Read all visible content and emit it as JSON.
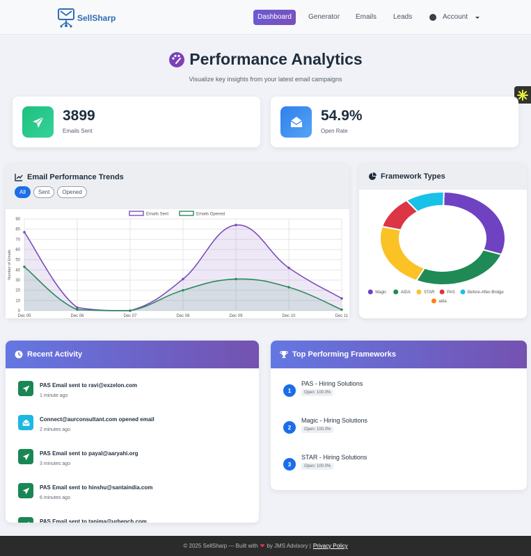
{
  "brand": {
    "name": "SellSharp"
  },
  "nav": {
    "items": [
      "Dashboard",
      "Generator",
      "Emails",
      "Leads"
    ],
    "account": "Account"
  },
  "header": {
    "title": "Performance Analytics",
    "subtitle": "Visualize key insights from your latest email campaigns"
  },
  "stats": [
    {
      "value": "3899",
      "label": "Emails Sent",
      "icon": "paper-plane-icon"
    },
    {
      "value": "54.9%",
      "label": "Open Rate",
      "icon": "envelope-open-icon"
    }
  ],
  "trends": {
    "title": "Email Performance Trends",
    "filters": [
      "All",
      "Sent",
      "Opened"
    ],
    "active_filter": "All"
  },
  "chart_data": [
    {
      "type": "area",
      "categories": [
        "Dec 05",
        "Dec 06",
        "Dec 07",
        "Dec 08",
        "Dec 09",
        "Dec 10",
        "Dec 11"
      ],
      "series": [
        {
          "name": "Emails Sent",
          "values": [
            77,
            3,
            0,
            31,
            84,
            42,
            12
          ],
          "color": "#7c4dba"
        },
        {
          "name": "Emails Opened",
          "values": [
            43,
            1,
            0,
            20,
            31,
            23,
            1
          ],
          "color": "#2a8a5e"
        }
      ],
      "ylabel": "Number of Emails",
      "ylim": [
        0,
        90
      ],
      "yticks": [
        0,
        10,
        20,
        30,
        40,
        50,
        60,
        70,
        80,
        90
      ],
      "grid": true,
      "legend": "top"
    },
    {
      "type": "pie",
      "title": "Framework Types",
      "categories": [
        "Magic",
        "AIDA",
        "STAR",
        "PAS",
        "Before-After-Bridge",
        "aida"
      ],
      "values": [
        30,
        26,
        22,
        11,
        10,
        0
      ],
      "colors": [
        "#6f42c1",
        "#1f8a55",
        "#fbc226",
        "#dc3545",
        "#17c1e8",
        "#fd7e14"
      ],
      "legend": "bottom"
    }
  ],
  "activity": {
    "title": "Recent Activity",
    "items": [
      {
        "text": "PAS Email sent to ravi@exzelon.com",
        "time": "1 minute ago",
        "kind": "sent",
        "icon": "paper-plane-icon"
      },
      {
        "text": "Connect@aurconsultant.com opened email",
        "time": "2 minutes ago",
        "kind": "opened",
        "icon": "envelope-open-icon"
      },
      {
        "text": "PAS Email sent to payal@aaryahi.org",
        "time": "3 minutes ago",
        "kind": "sent",
        "icon": "paper-plane-icon"
      },
      {
        "text": "PAS Email sent to hinshu@santaindia.com",
        "time": "6 minutes ago",
        "kind": "sent",
        "icon": "paper-plane-icon"
      },
      {
        "text": "PAS Email sent to tanima@urbench.com",
        "time": "",
        "kind": "sent",
        "icon": "paper-plane-icon"
      }
    ]
  },
  "top_frameworks": {
    "title": "Top Performing Frameworks",
    "items": [
      {
        "rank": "1",
        "name": "PAS - Hiring Solutions",
        "open": "Open: 100.0%"
      },
      {
        "rank": "2",
        "name": "Magic - Hiring Solutions",
        "open": "Open: 100.0%"
      },
      {
        "rank": "3",
        "name": "STAR - Hiring Solutions",
        "open": "Open: 100.0%"
      }
    ]
  },
  "footer": {
    "text_before": "© 2025 SellSharp — Built with",
    "text_after": "by JMS Advisory |",
    "link": "Privacy Policy"
  }
}
